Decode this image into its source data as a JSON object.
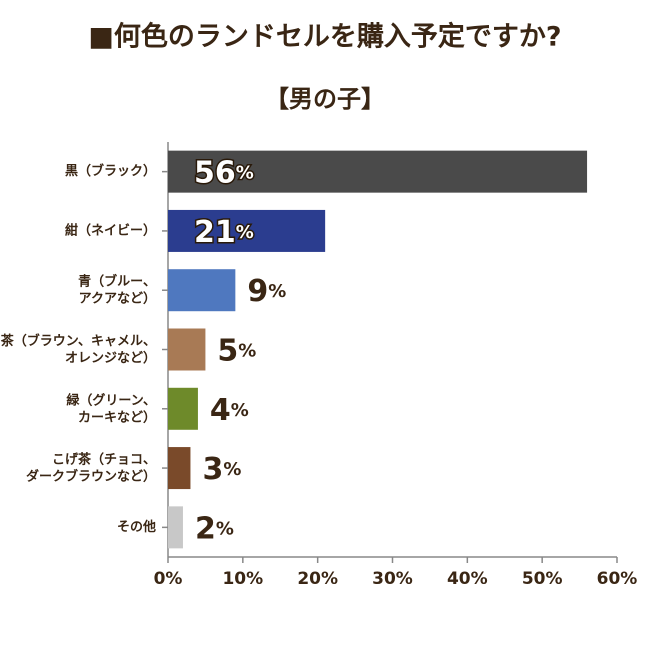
{
  "chart_data": {
    "type": "hbar",
    "title": "■何色のランドセルを購入予定ですか?",
    "subtitle": "【男の子】",
    "categories": [
      "黒（ブラック）",
      "紺（ネイビー）",
      "青（ブルー、\nアクアなど）",
      "茶（ブラウン、キャメル、\nオレンジなど）",
      "緑（グリーン、\nカーキなど）",
      "こげ茶（チョコ、\nダークブラウンなど）",
      "その他"
    ],
    "values": [
      56,
      21,
      9,
      5,
      4,
      3,
      2
    ],
    "value_labels": [
      "56%",
      "21%",
      "9%",
      "5%",
      "4%",
      "3%",
      "2%"
    ],
    "colors": [
      "#4a4a4a",
      "#2b3d8f",
      "#4f78bf",
      "#a87a55",
      "#6e8a2a",
      "#7a4a2a",
      "#c8c8c8"
    ],
    "xlim": [
      0,
      60
    ],
    "xticks": [
      {
        "value": 0,
        "label": "0%"
      },
      {
        "value": 10,
        "label": "10%"
      },
      {
        "value": 20,
        "label": "20%"
      },
      {
        "value": 30,
        "label": "30%"
      },
      {
        "value": 40,
        "label": "40%"
      },
      {
        "value": 50,
        "label": "50%"
      },
      {
        "value": 60,
        "label": "60%"
      }
    ]
  }
}
